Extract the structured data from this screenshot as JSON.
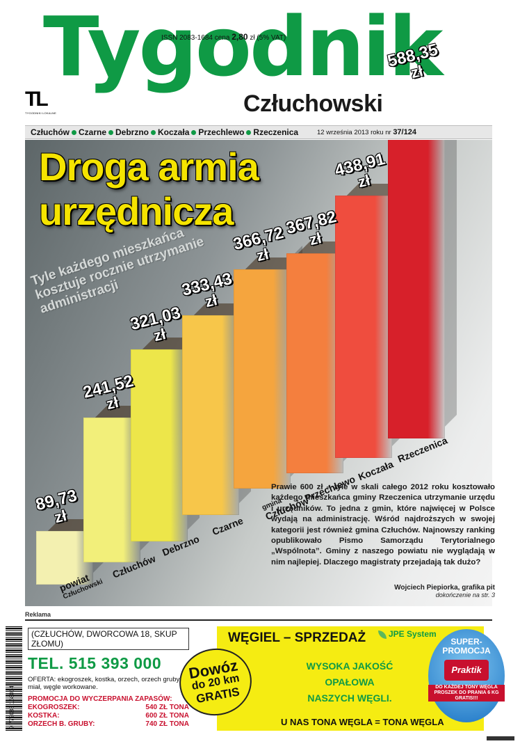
{
  "masthead": {
    "title": "Tygodnik",
    "subtitle": "Człuchowski",
    "issn": "ISSN 2083-1684 cena",
    "price": "2,80",
    "price_suffix": "zł (5% VAT)",
    "publisher_logo_text": "TL",
    "publisher_sub": "TYGODNIKI LOKALNE"
  },
  "townbar": {
    "towns": [
      "Człuchów",
      "Czarne",
      "Debrzno",
      "Koczała",
      "Przechlewo",
      "Rzeczenica"
    ],
    "date": "12 września 2013 roku nr",
    "issue": "37/124",
    "dot_color": "#0f9a45"
  },
  "cover": {
    "headline_line1": "Droga armia",
    "headline_line2": "urzędnicza",
    "subhead_line1": "Tyle każdego mieszkańca",
    "subhead_line2": "kosztuje rocznie utrzymanie",
    "subhead_line3": "administracji",
    "headline_color": "#f5e400"
  },
  "chart_data": {
    "type": "bar",
    "categories": [
      "powiat Człuchowski",
      "Człuchów",
      "Debrzno",
      "Czarne",
      "gmina Człuchów",
      "Przechlewo",
      "Koczała",
      "Rzeczenica"
    ],
    "values": [
      89.73,
      241.52,
      321.03,
      333.43,
      366.72,
      367.82,
      438.91,
      588.35
    ],
    "value_labels": [
      "89,73",
      "241,52",
      "321,03",
      "333,43",
      "366,72",
      "367,82",
      "438,91",
      "588,35"
    ],
    "unit": "zł",
    "ylim": [
      0,
      600
    ],
    "colors": [
      "#f3f0b0",
      "#f2ef7a",
      "#ede64a",
      "#f7c64a",
      "#f5a53e",
      "#f47f3e",
      "#ef4d3e",
      "#d7202a"
    ]
  },
  "category_labels": {
    "c0_main": "powiat",
    "c0_small": "Człuchowski",
    "c1": "Człuchów",
    "c2": "Debrzno",
    "c3": "Czarne",
    "c4_small": "gmina",
    "c4_main": "Człuchów",
    "c5": "Przechlewo",
    "c6": "Koczała",
    "c7": "Rzeczenica"
  },
  "article": {
    "body": "Prawie 600 zł – tyle w skali całego 2012 roku kosztowało każdego mieszkańca gminy Rzeczenica utrzymanie urzędu i urzędników. To jedna z gmin, które najwięcej w Polsce wydają na administrację. Wśród najdroższych w swojej kategorii jest również gmina Człuchów. Najnowszy ranking opublikowało Pismo Samorządu Terytorialnego „Wspólnota”. Gminy z naszego powiatu nie wyglądają w nim najlepiej. Dlaczego magistraty przejadają tak dużo?",
    "byline": "Wojciech Piepiorka, grafika pit",
    "continuation": "dokończenie na str. 3"
  },
  "ad": {
    "reklama": "Reklama",
    "address": "(CZŁUCHÓW, DWORCOWA 18, SKUP ZŁOMU)",
    "phone": "TEL. 515 393 000",
    "offer": "OFERTA: ekogroszek, kostka, orzech, orzech gruby, miał, węgle workowane.",
    "promo_title": "PROMOCJA DO WYCZERPANIA ZAPASÓW:",
    "prices": [
      {
        "name": "EKOGROSZEK:",
        "price": "540 ZŁ TONA"
      },
      {
        "name": "KOSTKA:",
        "price": "600 ZŁ TONA"
      },
      {
        "name": "ORZECH B. GRUBY:",
        "price": "740 ZŁ TONA"
      }
    ],
    "headline": "WĘGIEL – SPRZEDAŻ",
    "brand": "JPE System",
    "quality_line1": "WYSOKA JAKOŚĆ",
    "quality_line2": "OPAŁOWA",
    "quality_line3": "NASZYCH WĘGLI.",
    "bottom": "U NAS TONA WĘGLA = TONA WĘGLA",
    "delivery_1": "Dowóz",
    "delivery_2": "do 20 km",
    "delivery_3": "GRATIS",
    "super_title_1": "SUPER-",
    "super_title_2": "PROMOCJA",
    "super_brand": "Praktik",
    "super_note": "DO KAŻDEJ TONY WĘGLA PROSZEK DO PRANIA 6 KG GRATIS!!!"
  },
  "barcode_number": "9 772083 168014"
}
